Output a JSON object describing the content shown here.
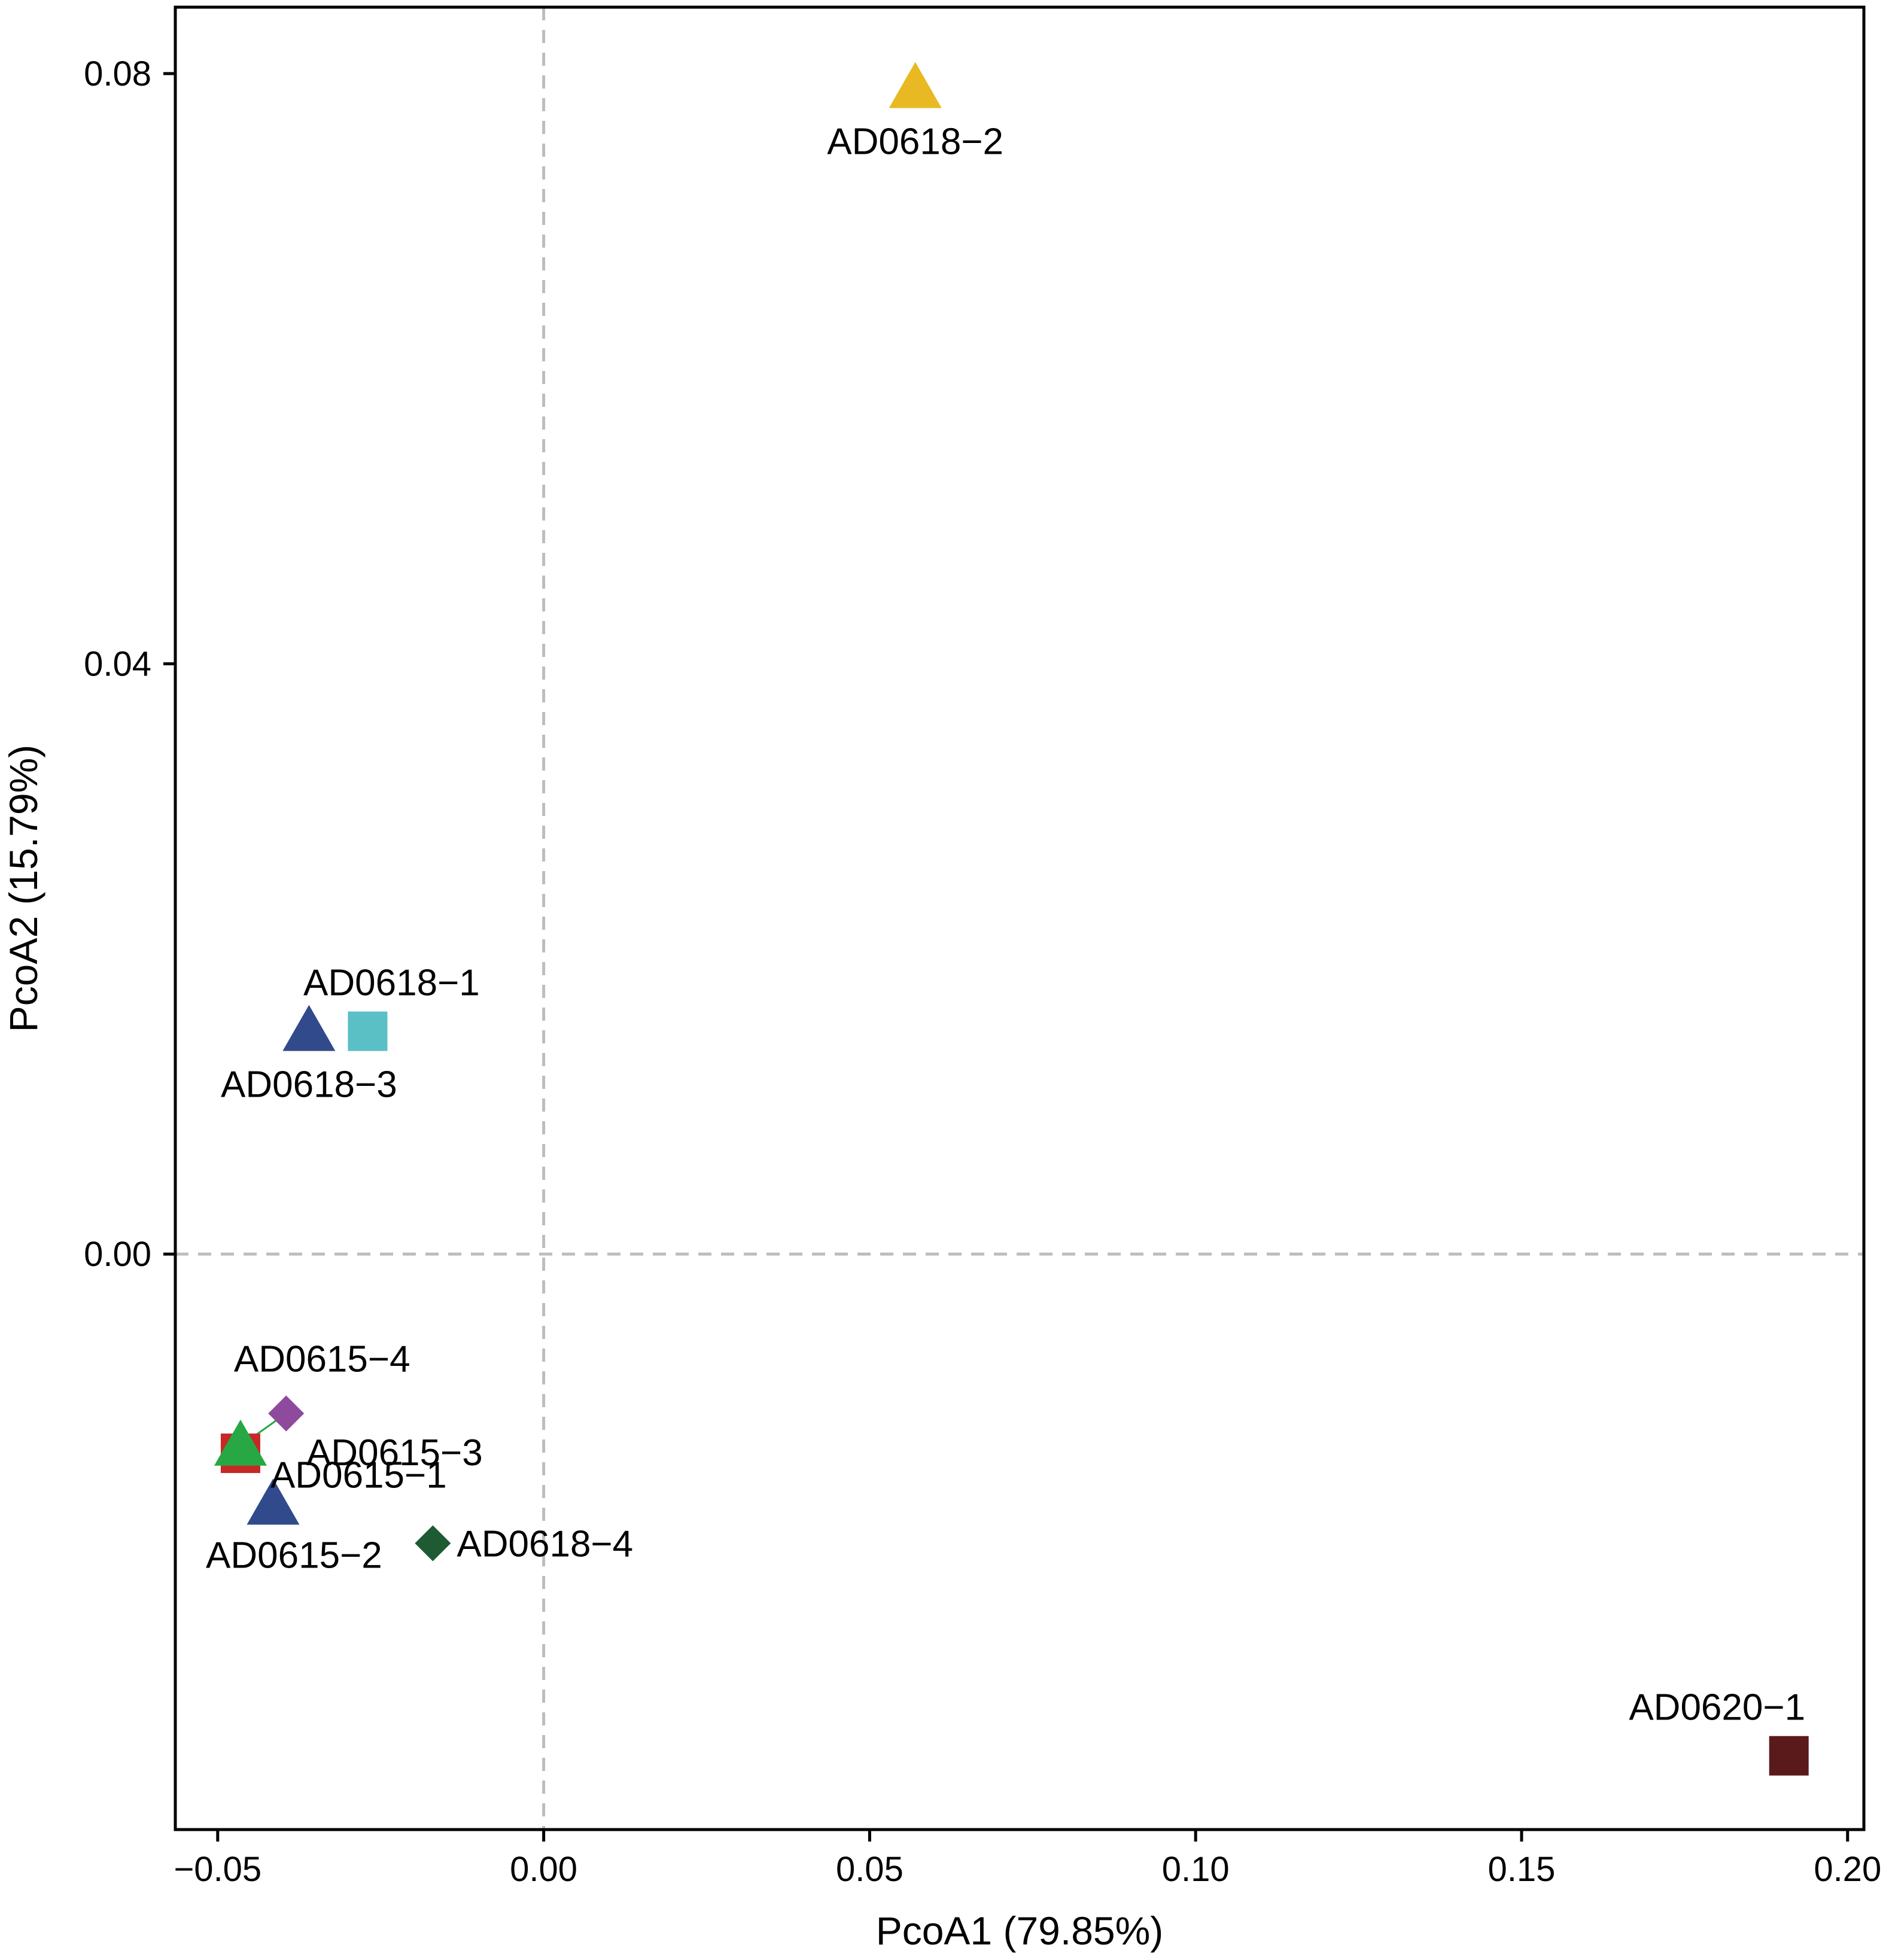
{
  "chart_data": {
    "type": "scatter",
    "title": "",
    "xlabel": "PcoA1 (79.85%)",
    "ylabel": "PcoA2 (15.79%)",
    "xlim": [
      -0.0565,
      0.2025
    ],
    "ylim": [
      -0.039,
      0.0845
    ],
    "xticks": [
      -0.05,
      0.0,
      0.05,
      0.1,
      0.15,
      0.2
    ],
    "xtick_labels": [
      "−0.05",
      "0.00",
      "0.05",
      "0.10",
      "0.15",
      "0.20"
    ],
    "yticks": [
      0.0,
      0.04,
      0.08
    ],
    "ytick_labels": [
      "0.00",
      "0.04",
      "0.08"
    ],
    "reference_lines": {
      "x": 0.0,
      "y": 0.0,
      "style": "dashed",
      "color": "#bdbdbd"
    },
    "grid": false,
    "points": [
      {
        "label": "AD0618-2",
        "x": 0.057,
        "y": 0.079,
        "shape": "triangle",
        "color": "#e8b923",
        "label_pos": "below"
      },
      {
        "label": "AD0618-1",
        "x": -0.027,
        "y": 0.0151,
        "shape": "square",
        "color": "#5bbfc6",
        "label_pos": "above"
      },
      {
        "label": "AD0618-3",
        "x": -0.036,
        "y": 0.0151,
        "shape": "triangle",
        "color": "#304a8c",
        "label_pos": "below"
      },
      {
        "label": "AD0615-4",
        "x": -0.0395,
        "y": -0.0108,
        "shape": "diamond",
        "color": "#8e4a9c",
        "label_pos": "above"
      },
      {
        "label": "AD0615-3",
        "x": -0.0465,
        "y": -0.0135,
        "shape": "square",
        "color": "#c62828",
        "label_pos": "right"
      },
      {
        "label": "AD0615-1",
        "x": -0.0465,
        "y": -0.013,
        "shape": "triangle",
        "color": "#27a844",
        "label_pos": "right"
      },
      {
        "label": "AD0615-2",
        "x": -0.0415,
        "y": -0.017,
        "shape": "triangle",
        "color": "#304a8c",
        "label_pos": "below"
      },
      {
        "label": "AD0618-4",
        "x": -0.017,
        "y": -0.0196,
        "shape": "diamond",
        "color": "#1e5a32",
        "label_pos": "right"
      },
      {
        "label": "AD0620-1",
        "x": 0.191,
        "y": -0.034,
        "shape": "square",
        "color": "#5a1a1c",
        "label_pos": "above"
      }
    ],
    "connector": {
      "from": "AD0615-1",
      "to": "AD0615-4",
      "color": "#27a844"
    }
  }
}
